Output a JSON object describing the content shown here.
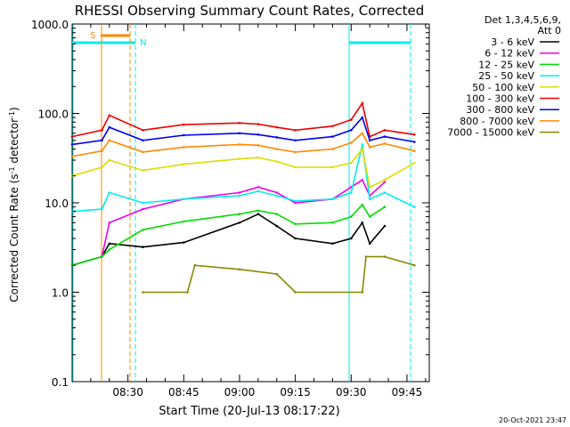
{
  "chart_data": {
    "type": "line",
    "title": "RHESSI Observing Summary Count Rates, Corrected",
    "xlabel": "Start Time (20-Jul-13 08:17:22)",
    "ylabel_main": "Corrected Count Rate (s",
    "ylabel_sup1": "-1",
    "ylabel_mid": " detector",
    "ylabel_sup2": "-1",
    "ylabel_end": ")",
    "y_scale": "log",
    "ylim": [
      0.1,
      1000
    ],
    "y_ticks": [
      {
        "value": 1000,
        "label": "1000.0"
      },
      {
        "value": 100,
        "label": "100.0"
      },
      {
        "value": 10,
        "label": "10.0"
      },
      {
        "value": 1,
        "label": "1.0"
      },
      {
        "value": 0.1,
        "label": "0.1"
      }
    ],
    "x_range_minutes": [
      0,
      96
    ],
    "x_ticks": [
      {
        "minute": 15,
        "label": "08:30"
      },
      {
        "minute": 30,
        "label": "08:45"
      },
      {
        "minute": 45,
        "label": "09:00"
      },
      {
        "minute": 60,
        "label": "09:15"
      },
      {
        "minute": 75,
        "label": "09:30"
      },
      {
        "minute": 90,
        "label": "09:45"
      }
    ],
    "legend_header": [
      "Det 1,3,4,5,6,9,",
      "Att 0"
    ],
    "series": [
      {
        "name": "3 - 6 keV",
        "color": "#000000",
        "points": [
          [
            0,
            2.0
          ],
          [
            8,
            2.5
          ],
          [
            10,
            3.5
          ],
          [
            19,
            3.2
          ],
          [
            30,
            3.6
          ],
          [
            45,
            6.0
          ],
          [
            50,
            7.5
          ],
          [
            55,
            5.5
          ],
          [
            60,
            4.0
          ],
          [
            70,
            3.5
          ],
          [
            75,
            4.0
          ],
          [
            78,
            6.0
          ],
          [
            80,
            3.5
          ],
          [
            84,
            5.5
          ]
        ]
      },
      {
        "name": "6 - 12 keV",
        "color": "#ee00ee",
        "points": [
          [
            0,
            2.0
          ],
          [
            8,
            2.5
          ],
          [
            10,
            6.0
          ],
          [
            19,
            8.5
          ],
          [
            30,
            11
          ],
          [
            45,
            13
          ],
          [
            50,
            15
          ],
          [
            55,
            13
          ],
          [
            60,
            10
          ],
          [
            70,
            11
          ],
          [
            75,
            15
          ],
          [
            78,
            18
          ],
          [
            80,
            12
          ],
          [
            84,
            17
          ]
        ]
      },
      {
        "name": "12 - 25 keV",
        "color": "#00dd00",
        "points": [
          [
            0,
            2.0
          ],
          [
            8,
            2.5
          ],
          [
            10,
            3.0
          ],
          [
            19,
            5.0
          ],
          [
            30,
            6.2
          ],
          [
            45,
            7.5
          ],
          [
            50,
            8.2
          ],
          [
            55,
            7.5
          ],
          [
            60,
            5.8
          ],
          [
            70,
            6.0
          ],
          [
            75,
            7.0
          ],
          [
            78,
            9.5
          ],
          [
            80,
            7.0
          ],
          [
            84,
            9.0
          ]
        ]
      },
      {
        "name": "25 - 50 keV",
        "color": "#00eeee",
        "points": [
          [
            0,
            8.0
          ],
          [
            8,
            8.5
          ],
          [
            10,
            13
          ],
          [
            19,
            10
          ],
          [
            30,
            11
          ],
          [
            45,
            12
          ],
          [
            50,
            13.5
          ],
          [
            55,
            12
          ],
          [
            60,
            10.5
          ],
          [
            70,
            11
          ],
          [
            75,
            13
          ],
          [
            78,
            45
          ],
          [
            80,
            11
          ],
          [
            84,
            13
          ],
          [
            92,
            9
          ]
        ]
      },
      {
        "name": "50 - 100 keV",
        "color": "#dddd00",
        "points": [
          [
            0,
            20
          ],
          [
            8,
            25
          ],
          [
            10,
            30
          ],
          [
            19,
            23
          ],
          [
            30,
            27
          ],
          [
            45,
            31
          ],
          [
            50,
            32
          ],
          [
            55,
            29
          ],
          [
            60,
            25
          ],
          [
            70,
            25
          ],
          [
            75,
            28
          ],
          [
            78,
            40
          ],
          [
            80,
            15
          ],
          [
            84,
            18
          ],
          [
            92,
            28
          ]
        ]
      },
      {
        "name": "100 - 300 keV",
        "color": "#ee0000",
        "points": [
          [
            0,
            55
          ],
          [
            8,
            65
          ],
          [
            10,
            95
          ],
          [
            19,
            65
          ],
          [
            30,
            75
          ],
          [
            45,
            78
          ],
          [
            50,
            76
          ],
          [
            55,
            70
          ],
          [
            60,
            65
          ],
          [
            70,
            72
          ],
          [
            75,
            85
          ],
          [
            78,
            130
          ],
          [
            80,
            55
          ],
          [
            84,
            65
          ],
          [
            92,
            58
          ]
        ]
      },
      {
        "name": "300 - 800 keV",
        "color": "#0000ee",
        "points": [
          [
            0,
            45
          ],
          [
            8,
            50
          ],
          [
            10,
            70
          ],
          [
            19,
            50
          ],
          [
            30,
            57
          ],
          [
            45,
            60
          ],
          [
            50,
            58
          ],
          [
            55,
            54
          ],
          [
            60,
            50
          ],
          [
            70,
            55
          ],
          [
            75,
            65
          ],
          [
            78,
            90
          ],
          [
            80,
            50
          ],
          [
            84,
            55
          ],
          [
            92,
            48
          ]
        ]
      },
      {
        "name": "800 - 7000 keV",
        "color": "#ff8800",
        "points": [
          [
            0,
            33
          ],
          [
            8,
            38
          ],
          [
            10,
            50
          ],
          [
            19,
            37
          ],
          [
            30,
            42
          ],
          [
            45,
            45
          ],
          [
            50,
            44
          ],
          [
            55,
            40
          ],
          [
            60,
            37
          ],
          [
            70,
            40
          ],
          [
            75,
            47
          ],
          [
            78,
            60
          ],
          [
            80,
            42
          ],
          [
            84,
            46
          ],
          [
            92,
            38
          ]
        ]
      },
      {
        "name": "7000 - 15000 keV",
        "color": "#888800",
        "points": [
          [
            19,
            1.0
          ],
          [
            31,
            1.0
          ],
          [
            33,
            2.0
          ],
          [
            45,
            1.8
          ],
          [
            55,
            1.6
          ],
          [
            60,
            1.0
          ],
          [
            78,
            1.0
          ],
          [
            79,
            2.5
          ],
          [
            84,
            2.5
          ],
          [
            92,
            2.0
          ]
        ]
      }
    ],
    "markers": [
      {
        "label": "S",
        "color": "#ff8800"
      },
      {
        "label": "N",
        "color": "#00eeee"
      }
    ],
    "timestamp": "20-Oct-2021 23:47"
  }
}
